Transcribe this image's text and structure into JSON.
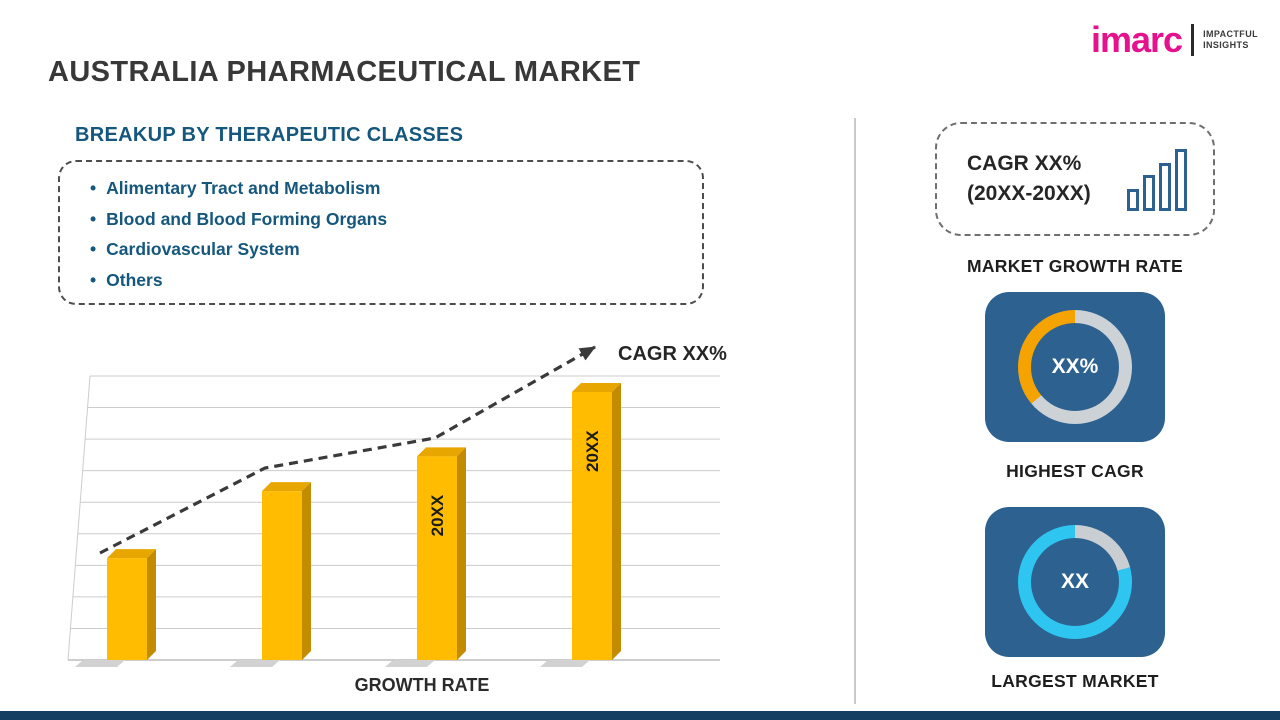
{
  "header": {
    "title": "AUSTRALIA PHARMACEUTICAL MARKET",
    "logo": {
      "brand": "imarc",
      "tagline_line1": "IMPACTFUL",
      "tagline_line2": "INSIGHTS"
    }
  },
  "left": {
    "section_heading": "BREAKUP BY THERAPEUTIC CLASSES",
    "bullets": [
      "Alimentary Tract and Metabolism",
      "Blood and Blood Forming Organs",
      "Cardiovascular System",
      "Others"
    ]
  },
  "right": {
    "cagr_box": {
      "line1": "CAGR XX%",
      "line2": "(20XX-20XX)"
    },
    "market_growth_label": "MARKET GROWTH RATE",
    "highest_cagr_label": "HIGHEST CAGR",
    "largest_market_label": "LARGEST MARKET"
  },
  "chart_data": [
    {
      "type": "bar",
      "xlabel": "GROWTH RATE",
      "categories": [
        "",
        "",
        "20XX",
        "20XX"
      ],
      "values": [
        38,
        63,
        76,
        100
      ],
      "values_unit": "percent-of-tallest-bar",
      "bar_labels": [
        "",
        "",
        "20XX",
        "20XX"
      ],
      "trend_label": "CAGR XX%",
      "trend_style": "dashed-arrow-up",
      "grid": true,
      "legend": false,
      "colors": {
        "front": "#FFBC00",
        "side": "#C28B00",
        "top": "#E8A700",
        "label": "#1A1A1A"
      }
    },
    {
      "type": "donut",
      "center_label": "XX%",
      "caption": "HIGHEST CAGR",
      "from_deg": 230,
      "slices": [
        {
          "name": "highlight",
          "color": "#F5A300",
          "deg": 130
        },
        {
          "name": "remainder",
          "color": "#CDD2D7",
          "deg": 230
        }
      ]
    },
    {
      "type": "donut",
      "center_label": "XX",
      "caption": "LARGEST MARKET",
      "from_deg": 0,
      "slices": [
        {
          "name": "remainder",
          "color": "#C9CED3",
          "deg": 75
        },
        {
          "name": "highlight",
          "color": "#2EC6F0",
          "deg": 285
        }
      ]
    }
  ],
  "colors": {
    "accent_blue_text": "#15577D",
    "bar_yellow": "#FFBC00",
    "card_blue": "#2D6290",
    "brand_pink": "#E6118C",
    "footer_navy": "#153E63",
    "divider_gray": "#C9C9C9"
  }
}
